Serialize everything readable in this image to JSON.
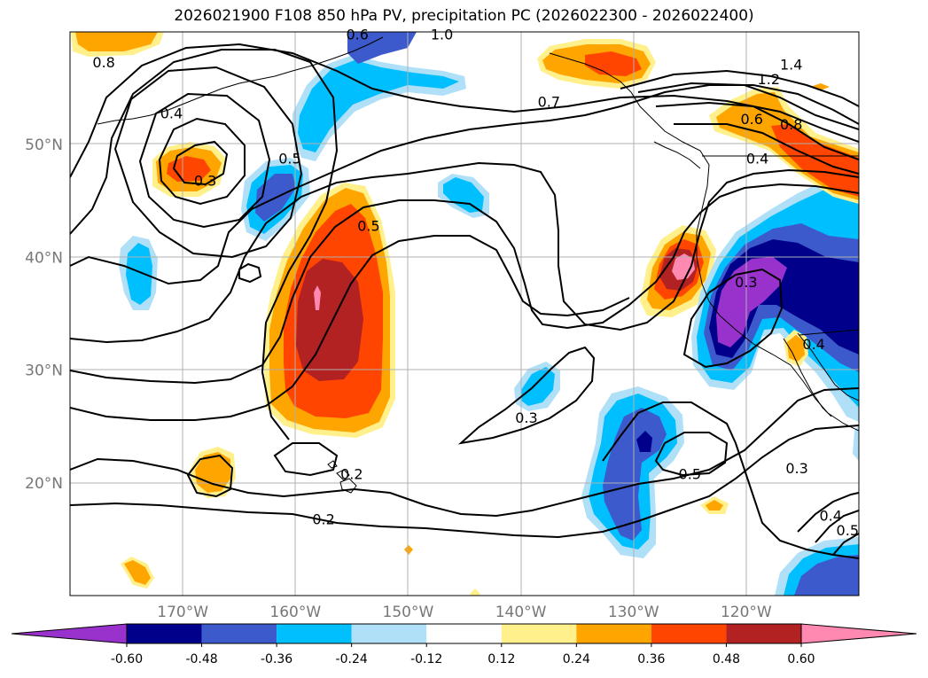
{
  "title": "2026021900 F108 850 hPa PV, precipitation PC (2026022300 - 2026022400)",
  "map": {
    "projection": "PlateCarree",
    "lon_range": [
      -180,
      -110
    ],
    "lat_range": [
      10,
      60
    ],
    "lat_ticks": [
      {
        "value": 50,
        "label": "50°N"
      },
      {
        "value": 40,
        "label": "40°N"
      },
      {
        "value": 30,
        "label": "30°N"
      },
      {
        "value": 20,
        "label": "20°N"
      }
    ],
    "lon_ticks": [
      {
        "value": -170,
        "label": "170°W"
      },
      {
        "value": -160,
        "label": "160°W"
      },
      {
        "value": -150,
        "label": "150°W"
      },
      {
        "value": -140,
        "label": "140°W"
      },
      {
        "value": -130,
        "label": "130°W"
      },
      {
        "value": -120,
        "label": "120°W"
      }
    ],
    "gridlines": true
  },
  "contour_labels": [
    {
      "text": "0.8",
      "lon": -177.0,
      "lat": 57.0
    },
    {
      "text": "0.4",
      "lon": -171.0,
      "lat": 52.5
    },
    {
      "text": "0.3",
      "lon": -168.0,
      "lat": 46.5
    },
    {
      "text": "0.5",
      "lon": -160.5,
      "lat": 48.5
    },
    {
      "text": "0.6",
      "lon": -154.5,
      "lat": 59.5
    },
    {
      "text": "1.0",
      "lon": -147.0,
      "lat": 59.5
    },
    {
      "text": "0.5",
      "lon": -153.5,
      "lat": 42.5
    },
    {
      "text": "0.7",
      "lon": -137.5,
      "lat": 53.5
    },
    {
      "text": "1.4",
      "lon": -116.0,
      "lat": 56.8
    },
    {
      "text": "1.2",
      "lon": -118.0,
      "lat": 55.5
    },
    {
      "text": "0.6",
      "lon": -119.5,
      "lat": 52.0
    },
    {
      "text": "0.8",
      "lon": -116.0,
      "lat": 51.5
    },
    {
      "text": "0.4",
      "lon": -119.0,
      "lat": 48.5
    },
    {
      "text": "0.3",
      "lon": -120.0,
      "lat": 37.5
    },
    {
      "text": "0.4",
      "lon": -114.0,
      "lat": 32.0
    },
    {
      "text": "0.3",
      "lon": -139.5,
      "lat": 25.5
    },
    {
      "text": "0.5",
      "lon": -125.0,
      "lat": 20.5
    },
    {
      "text": "0.2",
      "lon": -155.0,
      "lat": 20.5
    },
    {
      "text": "0.2",
      "lon": -157.5,
      "lat": 16.5
    },
    {
      "text": "0.3",
      "lon": -115.5,
      "lat": 21.0
    },
    {
      "text": "0.4",
      "lon": -112.5,
      "lat": 16.8
    },
    {
      "text": "0.5",
      "lon": -111.0,
      "lat": 15.5
    }
  ],
  "colorbar": {
    "levels": [
      "-0.60",
      "-0.48",
      "-0.36",
      "-0.24",
      "-0.12",
      "0.12",
      "0.24",
      "0.36",
      "0.48",
      "0.60"
    ],
    "colors": [
      "#9932cc",
      "#00008b",
      "#3d5acd",
      "#00bfff",
      "#b0e0f8",
      "#ffffff",
      "#fff08c",
      "#ffa500",
      "#ff4500",
      "#b22222",
      "#ff89b0"
    ],
    "extend": "both"
  },
  "colors": {
    "purple": "#9932cc",
    "navy": "#00008b",
    "royal": "#3d5acd",
    "sky": "#00bfff",
    "light_blue": "#b0e0f8",
    "yellow": "#fff08c",
    "orange": "#ffa500",
    "red_orange": "#ff4500",
    "firebrick": "#b22222",
    "pink": "#ff89b0"
  }
}
